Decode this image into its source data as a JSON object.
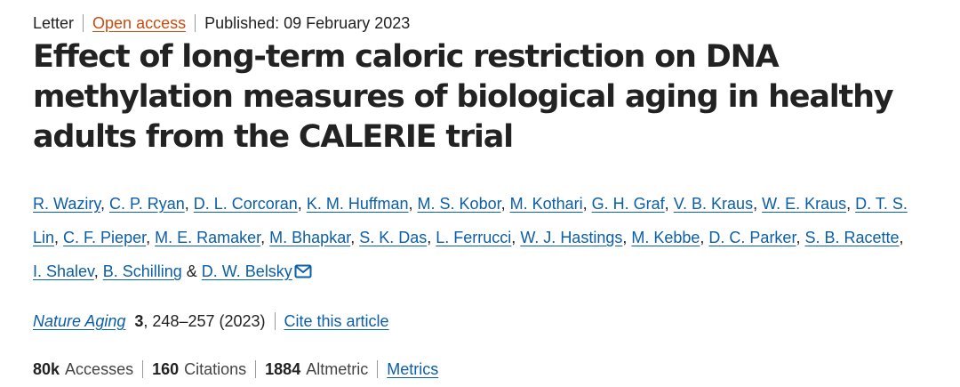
{
  "meta": {
    "article_type": "Letter",
    "access": "Open access",
    "published": "Published: 09 February 2023"
  },
  "title": "Effect of long-term caloric restriction on DNA methylation measures of biological aging in healthy adults from the CALERIE trial",
  "authors": [
    "R. Waziry",
    "C. P. Ryan",
    "D. L. Corcoran",
    "K. M. Huffman",
    "M. S. Kobor",
    "M. Kothari",
    "G. H. Graf",
    "V. B. Kraus",
    "W. E. Kraus",
    "D. T. S. Lin",
    "C. F. Pieper",
    "M. E. Ramaker",
    "M. Bhapkar",
    "S. K. Das",
    "L. Ferrucci",
    "W. J. Hastings",
    "M. Kebbe",
    "D. C. Parker",
    "S. B. Racette",
    "I. Shalev",
    "B. Schilling",
    "D. W. Belsky"
  ],
  "author_separators": {
    "comma": ", ",
    "last": " & "
  },
  "citation": {
    "journal": "Nature Aging",
    "volume": "3",
    "pages_year": ", 248–257 (2023)",
    "cite_link": "Cite this article"
  },
  "metrics": {
    "accesses_value": "80k",
    "accesses_label": "Accesses",
    "citations_value": "160",
    "citations_label": "Citations",
    "altmetric_value": "1884",
    "altmetric_label": "Altmetric",
    "metrics_link": "Metrics"
  },
  "icons": {
    "corresponding_author": "mail-icon"
  },
  "colors": {
    "link_blue": "#0b5ea8",
    "open_access_orange": "#c74c10",
    "text": "#222222"
  }
}
